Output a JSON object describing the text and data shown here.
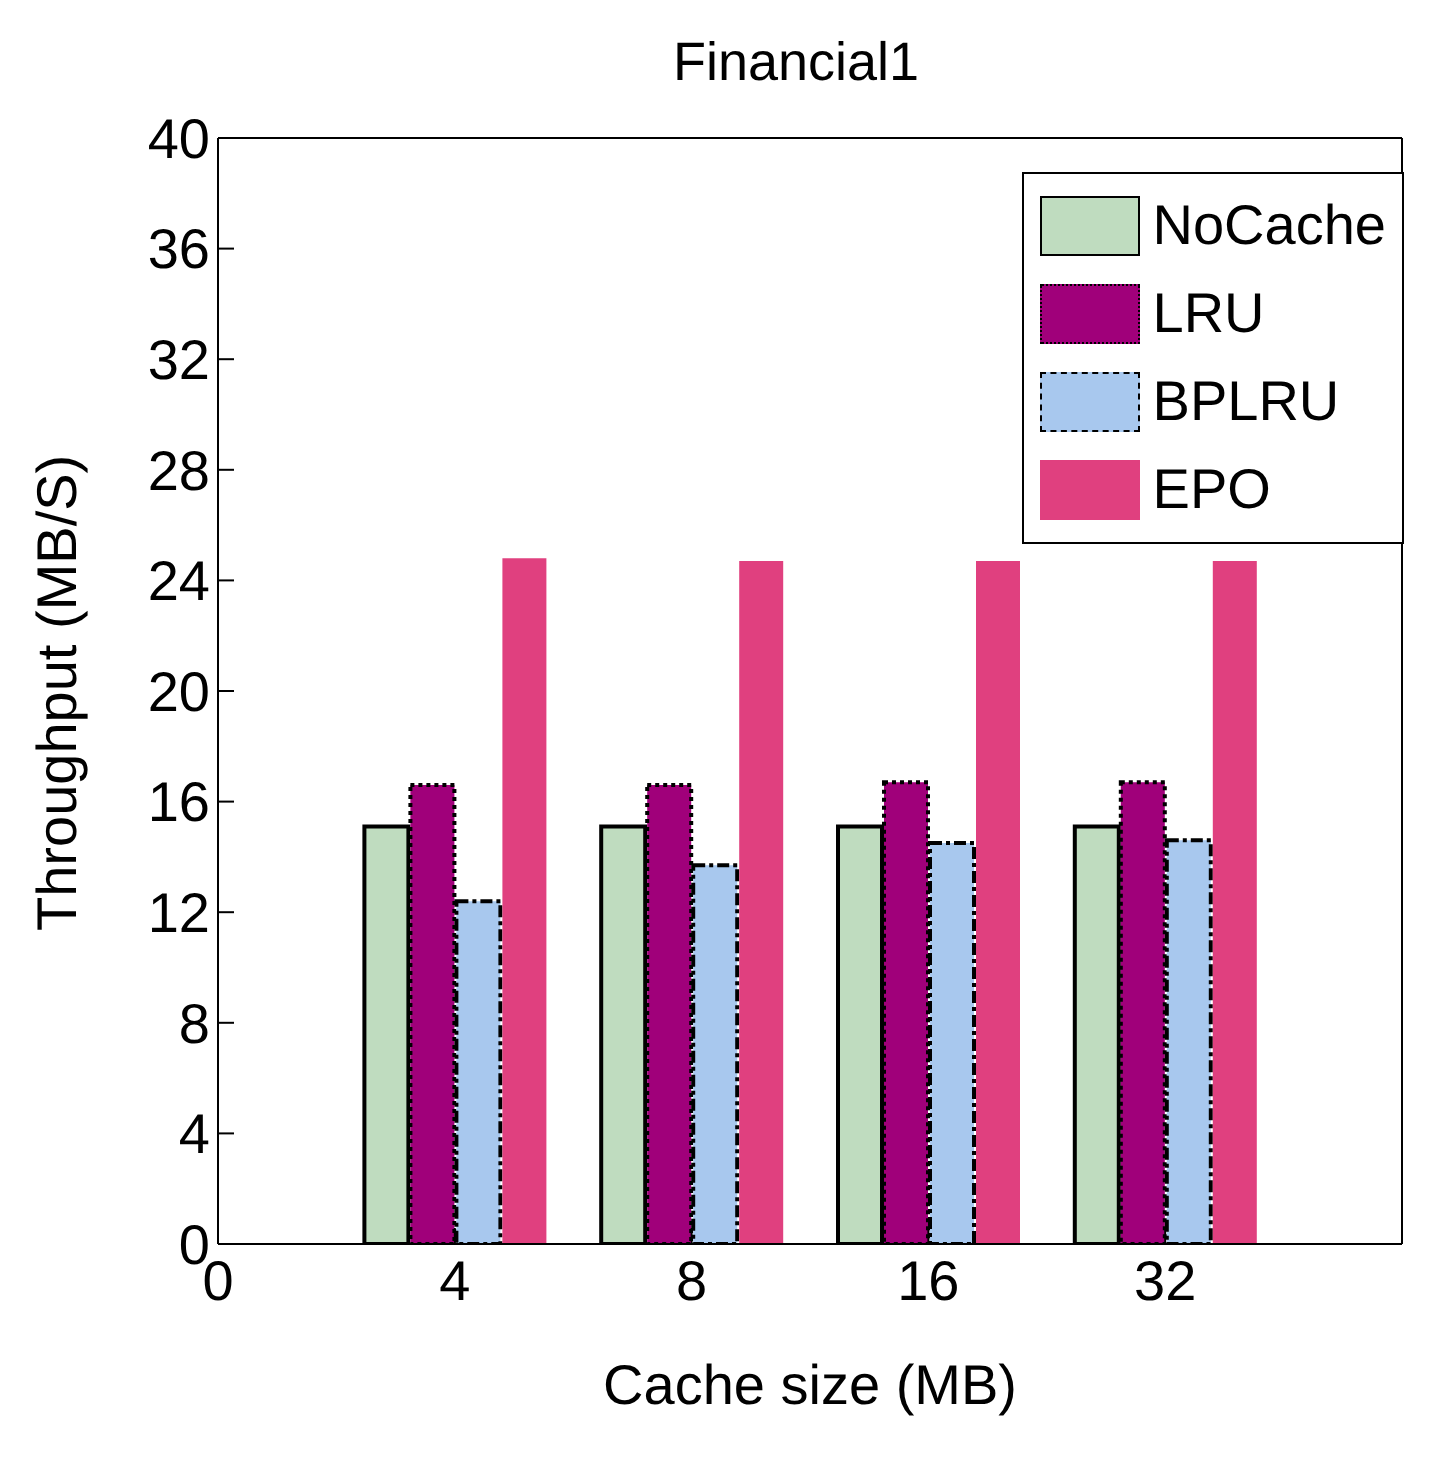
{
  "chart_data": {
    "type": "bar",
    "title": "Financial1",
    "xlabel": "Cache size (MB)",
    "ylabel": "Throughput (MB/S)",
    "categories": [
      "0",
      "4",
      "8",
      "16",
      "32",
      null
    ],
    "ylim": [
      0,
      40
    ],
    "yticks": [
      0,
      4,
      8,
      12,
      16,
      20,
      24,
      28,
      32,
      36,
      40
    ],
    "series": [
      {
        "name": "NoCache",
        "color": "#bfdcbf",
        "values": [
          null,
          15.1,
          15.1,
          15.1,
          15.1,
          null
        ],
        "line_style": "solid"
      },
      {
        "name": "LRU",
        "color": "#a0007a",
        "values": [
          null,
          16.6,
          16.6,
          16.7,
          16.7,
          null
        ],
        "line_style": "dotted"
      },
      {
        "name": "BPLRU",
        "color": "#a8c8ee",
        "values": [
          null,
          12.4,
          13.7,
          14.5,
          14.6,
          null
        ],
        "line_style": "dashed"
      },
      {
        "name": "EPO",
        "color": "#e0407f",
        "values": [
          null,
          24.8,
          24.7,
          24.7,
          24.7,
          null
        ]
      }
    ],
    "legend": "top right",
    "grid": false
  }
}
